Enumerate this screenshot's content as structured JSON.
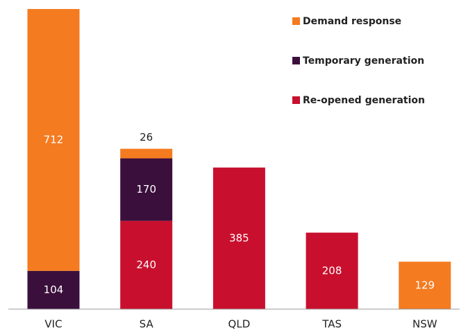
{
  "chart_data": {
    "type": "stacked_bar",
    "categories": [
      "VIC",
      "SA",
      "QLD",
      "TAS",
      "NSW"
    ],
    "series": [
      {
        "name": "Re-opened generation",
        "color": "#c8102e",
        "values": [
          null,
          240,
          385,
          208,
          null
        ]
      },
      {
        "name": "Temporary generation",
        "color": "#3b0f3c",
        "values": [
          104,
          170,
          null,
          null,
          null
        ]
      },
      {
        "name": "Demand response",
        "color": "#f47b20",
        "values": [
          712,
          26,
          null,
          null,
          129
        ]
      }
    ],
    "legend": "top-right"
  }
}
